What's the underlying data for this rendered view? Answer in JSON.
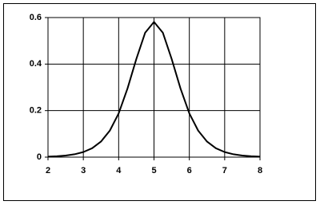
{
  "chart_data": {
    "type": "line",
    "x": [
      2,
      2.25,
      2.5,
      2.75,
      3,
      3.25,
      3.5,
      3.75,
      4,
      4.25,
      4.5,
      4.75,
      5,
      5.25,
      5.5,
      5.75,
      6,
      6.25,
      6.5,
      6.75,
      7,
      7.25,
      7.5,
      7.75,
      8
    ],
    "values": [
      0.0022,
      0.0039,
      0.0069,
      0.0123,
      0.0218,
      0.0384,
      0.067,
      0.114,
      0.188,
      0.295,
      0.422,
      0.535,
      0.581,
      0.535,
      0.422,
      0.295,
      0.188,
      0.114,
      0.067,
      0.0384,
      0.0218,
      0.0123,
      0.0069,
      0.0039,
      0.0022
    ],
    "color": "#000000",
    "xlim": [
      2,
      8
    ],
    "xticks": [
      2,
      3,
      4,
      5,
      6,
      7,
      8
    ],
    "ylim": [
      0,
      0.6
    ],
    "yticks": [
      0,
      0.2,
      0.4,
      0.6
    ],
    "grid": true
  }
}
